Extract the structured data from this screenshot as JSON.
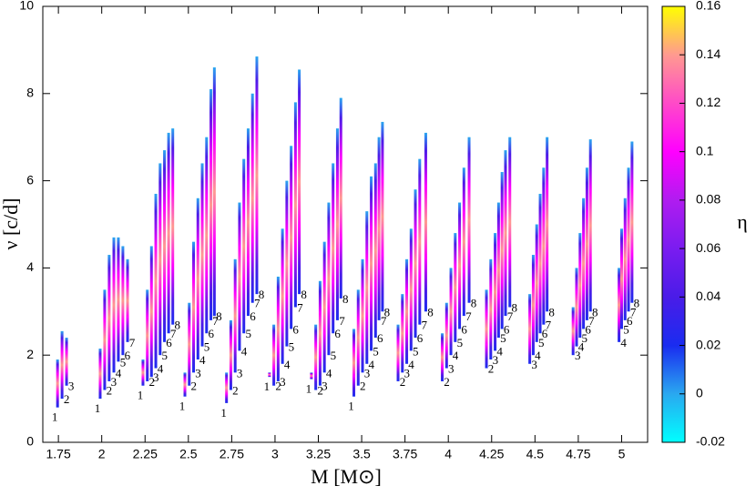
{
  "chart_data": {
    "type": "segments",
    "xlabel": "M [M⊙]",
    "ylabel": "ν [c/d]",
    "xlim": [
      1.66,
      5.15
    ],
    "ylim": [
      0,
      10
    ],
    "xticks": [
      1.75,
      2,
      2.25,
      2.5,
      2.75,
      3,
      3.25,
      3.5,
      3.75,
      4,
      4.25,
      4.5,
      4.75,
      5
    ],
    "yticks": [
      0,
      2,
      4,
      6,
      8,
      10
    ],
    "colorbar": {
      "label": "η",
      "lim": [
        -0.02,
        0.16
      ],
      "ticks": [
        -0.02,
        0,
        0.02,
        0.04,
        0.06,
        0.08,
        0.1,
        0.12,
        0.14,
        0.16
      ],
      "colors": [
        "#00ffff",
        "#2aa8f0",
        "#1a2cf0",
        "#4a1ce8",
        "#7a1cf0",
        "#b01cf0",
        "#ff00ff",
        "#ff4ac8",
        "#ff9a90",
        "#ffff00"
      ]
    },
    "x": [
      1.745,
      1.771,
      1.797,
      1.991,
      2.017,
      2.043,
      2.07,
      2.096,
      2.122,
      2.149,
      2.238,
      2.263,
      2.287,
      2.312,
      2.337,
      2.362,
      2.386,
      2.41,
      2.48,
      2.505,
      2.53,
      2.555,
      2.58,
      2.605,
      2.63,
      2.65,
      2.72,
      2.745,
      2.77,
      2.795,
      2.82,
      2.845,
      2.87,
      2.895,
      2.968,
      2.993,
      3.018,
      3.043,
      3.068,
      3.093,
      3.118,
      3.14,
      3.21,
      3.235,
      3.26,
      3.285,
      3.31,
      3.335,
      3.36,
      3.38,
      3.455,
      3.48,
      3.505,
      3.53,
      3.555,
      3.58,
      3.6,
      3.62,
      3.71,
      3.735,
      3.76,
      3.785,
      3.81,
      3.835,
      3.87,
      3.965,
      3.99,
      4.015,
      4.04,
      4.065,
      4.09,
      4.12,
      4.22,
      4.245,
      4.27,
      4.29,
      4.31,
      4.33,
      4.355,
      4.47,
      4.49,
      4.51,
      4.53,
      4.55,
      4.57,
      4.72,
      4.74,
      4.76,
      4.78,
      4.8,
      4.82,
      4.985,
      5.0,
      5.02,
      5.04,
      5.06
    ],
    "low": [
      0.8,
      1.0,
      1.3,
      1.0,
      1.2,
      1.4,
      1.6,
      1.85,
      2.0,
      2.3,
      1.3,
      1.4,
      1.5,
      1.7,
      2.0,
      2.3,
      2.5,
      2.7,
      1.05,
      1.3,
      1.6,
      1.9,
      2.2,
      2.5,
      2.8,
      2.9,
      0.9,
      1.2,
      1.6,
      2.1,
      2.5,
      2.9,
      3.2,
      3.4,
      1.5,
      1.3,
      1.4,
      1.8,
      2.2,
      2.6,
      3.1,
      3.4,
      1.45,
      1.2,
      1.3,
      1.6,
      2.0,
      2.5,
      2.8,
      3.3,
      1.05,
      1.3,
      1.6,
      1.8,
      2.1,
      2.4,
      2.8,
      3.0,
      1.4,
      1.6,
      1.8,
      2.1,
      2.4,
      2.7,
      3.0,
      1.4,
      1.7,
      2.0,
      2.3,
      2.6,
      2.9,
      3.2,
      1.7,
      1.9,
      2.1,
      2.4,
      2.6,
      2.9,
      3.1,
      1.8,
      2.0,
      2.3,
      2.5,
      2.7,
      3.0,
      2.0,
      2.2,
      2.4,
      2.6,
      2.8,
      3.0,
      2.3,
      2.6,
      2.8,
      3.0,
      3.2
    ],
    "high": [
      1.9,
      2.55,
      2.4,
      2.15,
      3.5,
      4.3,
      4.7,
      4.7,
      4.5,
      4.2,
      1.9,
      3.5,
      4.5,
      5.7,
      6.4,
      6.7,
      7.1,
      7.2,
      1.6,
      3.2,
      4.6,
      5.6,
      6.4,
      7.0,
      8.1,
      8.6,
      1.6,
      2.8,
      4.2,
      5.5,
      6.5,
      7.2,
      8.0,
      8.85,
      1.6,
      2.7,
      3.8,
      4.9,
      6.0,
      6.8,
      7.8,
      8.55,
      1.6,
      2.7,
      3.7,
      4.6,
      5.5,
      6.4,
      7.2,
      7.9,
      2.6,
      3.5,
      4.2,
      5.3,
      6.1,
      6.4,
      7.0,
      7.35,
      2.7,
      3.4,
      4.2,
      4.9,
      5.8,
      6.5,
      7.1,
      2.5,
      3.2,
      4.0,
      4.8,
      5.5,
      6.3,
      7.0,
      3.5,
      4.2,
      4.8,
      5.5,
      6.2,
      6.7,
      7.0,
      3.4,
      4.3,
      5.0,
      5.7,
      6.3,
      7.0,
      3.1,
      4.0,
      4.8,
      5.6,
      6.3,
      6.95,
      4.0,
      4.9,
      5.6,
      6.3,
      6.9
    ],
    "labels": [
      "1",
      "2",
      "3",
      "1",
      "2",
      "3",
      "4",
      "5",
      "6",
      "7",
      "1",
      "2",
      "3",
      "4",
      "5",
      "6",
      "7",
      "8",
      "1",
      "2",
      "3",
      "4",
      "5",
      "6",
      "7",
      "8",
      "1",
      "2",
      "3",
      "4",
      "5",
      "6",
      "7",
      "8",
      "1",
      "2",
      "3",
      "4",
      "5",
      "6",
      "7",
      "8",
      "1",
      "2",
      "3",
      "4",
      "5",
      "6",
      "7",
      "8",
      "1",
      "2",
      "3",
      "4",
      "5",
      "6",
      "7",
      "8",
      "2",
      "3",
      "4",
      "5",
      "6",
      "7",
      "8",
      "2",
      "3",
      "4",
      "5",
      "6",
      "7",
      "8",
      "2",
      "3",
      "4",
      "5",
      "6",
      "7",
      "8",
      "3",
      "4",
      "5",
      "6",
      "7",
      "8",
      "3",
      "4",
      "5",
      "6",
      "7",
      "8",
      "4",
      "5",
      "6",
      "7",
      "8"
    ]
  }
}
